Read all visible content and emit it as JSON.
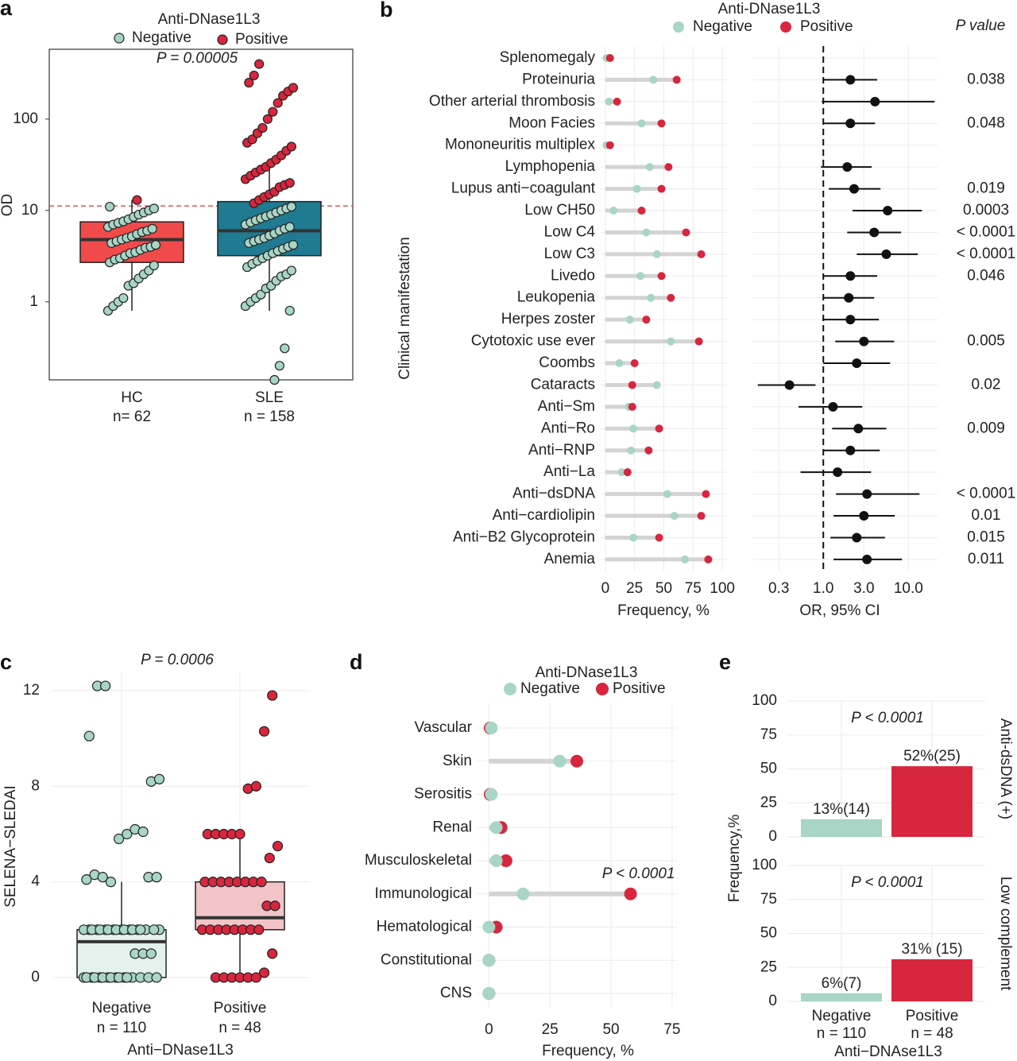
{
  "chart_data": [
    {
      "type": "box-jitter",
      "panel": "a",
      "ylog": true,
      "ylim": [
        0.14,
        580
      ],
      "yticks": [
        1,
        10,
        100
      ],
      "ylabel": "OD",
      "legend_title": "Anti-DNase1L3",
      "annotation": "P = 0.00005",
      "threshold": 11.2,
      "grid": false,
      "series": [
        {
          "name": "Negative",
          "color": "#a8d5c5"
        },
        {
          "name": "Positive",
          "color": "#d7263d"
        }
      ],
      "groups": [
        {
          "category": "HC",
          "n_label": "n= 62",
          "box": {
            "whisker_low": 0.8,
            "q1": 2.7,
            "median": 4.8,
            "q3": 7.5,
            "whisker_high": 13,
            "color": "#f04a4a"
          },
          "points": [
            [
              0.8,
              0.9,
              1.0,
              1.1,
              1.5,
              1.6,
              1.8,
              2.0,
              2.2,
              2.5,
              2.7,
              2.9,
              3.0,
              3.2,
              3.4,
              3.5,
              3.7,
              3.9,
              4.0,
              4.2,
              4.4,
              4.6,
              4.8,
              5.0,
              5.2,
              5.5,
              5.8,
              6.0,
              6.3,
              6.6,
              7.0,
              7.3,
              7.6,
              8.0,
              8.5,
              9.0,
              9.5,
              10.0,
              10.5,
              11.0
            ],
            [
              13
            ]
          ]
        },
        {
          "category": "SLE",
          "n_label": "n = 158",
          "box": {
            "whisker_low": 0.8,
            "q1": 3.2,
            "median": 6,
            "q3": 12.5,
            "whisker_high": 30,
            "color": "#1f7a92"
          },
          "points": [
            [
              0.14,
              0.2,
              0.31,
              0.8,
              0.9,
              1.0,
              1.1,
              1.2,
              1.4,
              1.5,
              1.7,
              1.9,
              2.0,
              2.2,
              2.4,
              2.6,
              2.8,
              3.0,
              3.2,
              3.4,
              3.6,
              3.8,
              4.0,
              4.2,
              4.4,
              4.6,
              4.8,
              5.0,
              5.3,
              5.6,
              6.0,
              6.3,
              6.6,
              7.0,
              7.4,
              7.8,
              8.2,
              8.6,
              9.0,
              9.5,
              10,
              10.5,
              11
            ],
            [
              12,
              13,
              14,
              15,
              16,
              18,
              19,
              20,
              22,
              24,
              26,
              28,
              30,
              33,
              36,
              40,
              45,
              50,
              55,
              60,
              70,
              80,
              100,
              120,
              150,
              180,
              200,
              220,
              250,
              300,
              400
            ]
          ]
        }
      ]
    },
    {
      "type": "lollipop-forest",
      "panel": "b",
      "legend_title": "Anti-DNase1L3",
      "ylabel": "Clinical manifestation",
      "xlabel": "Frequency, %",
      "xlim": [
        -4,
        104
      ],
      "xticks": [
        0,
        25,
        50,
        75,
        100
      ],
      "or_xlabel": "OR, 95% CI",
      "or_xlog": true,
      "or_xlim": [
        0.15,
        22
      ],
      "or_xticks": [
        0.3,
        {
          "value": 1,
          "label": "1.0"
        },
        {
          "value": 3,
          "label": "3.0"
        },
        {
          "value": 10,
          "label": "10.0"
        }
      ],
      "reference_line": 1,
      "p_header": "P value",
      "categories": [
        "Splenomegaly",
        "Proteinuria",
        "Other arterial thrombosis",
        "Moon Facies",
        "Mononeuritis multiplex",
        "Lymphopenia",
        "Lupus anti−coagulant",
        "Low CH50",
        "Low C4",
        "Low C3",
        "Livedo",
        "Leukopenia",
        "Herpes zoster",
        "Cytotoxic use ever",
        "Coombs",
        "Cataracts",
        "Anti−Sm",
        "Anti−Ro",
        "Anti−RNP",
        "Anti−La",
        "Anti−dsDNA",
        "Anti−cardiolipin",
        "Anti−B2 Glycoprotein",
        "Anemia"
      ],
      "series": [
        {
          "name": "Negative",
          "color": "#a8d5c5",
          "values": [
            1,
            41,
            3,
            31,
            1,
            38,
            27,
            7,
            35,
            44,
            30,
            39,
            21,
            56,
            12,
            44,
            20,
            24,
            22,
            14,
            53,
            59,
            24,
            68
          ]
        },
        {
          "name": "Positive",
          "color": "#d7263d",
          "values": [
            4,
            61,
            10,
            48,
            4,
            54,
            48,
            31,
            69,
            82,
            48,
            56,
            35,
            80,
            25,
            23,
            23,
            46,
            37,
            19,
            86,
            82,
            46,
            88
          ]
        }
      ],
      "or": {
        "estimate": [
          null,
          2.08,
          4.05,
          2.08,
          null,
          1.91,
          2.3,
          5.7,
          3.96,
          5.5,
          2.08,
          1.99,
          2.08,
          3.0,
          2.47,
          0.4,
          1.3,
          2.58,
          2.08,
          1.47,
          3.26,
          3.0,
          2.47,
          3.26
        ],
        "lower": [
          null,
          1.0,
          0.96,
          1.02,
          null,
          0.94,
          1.16,
          2.2,
          1.91,
          2.47,
          1.0,
          1.0,
          0.98,
          1.38,
          1.0,
          0.17,
          0.51,
          1.27,
          1.0,
          0.54,
          1.41,
          1.32,
          1.21,
          1.32
        ],
        "upper": [
          null,
          4.3,
          20.3,
          4.05,
          null,
          3.7,
          4.7,
          14.4,
          8.2,
          12.9,
          4.3,
          3.96,
          4.5,
          6.8,
          6.1,
          0.81,
          2.87,
          5.5,
          4.6,
          3.64,
          13.5,
          6.9,
          5.3,
          8.4
        ]
      },
      "p_values": [
        null,
        "0.038",
        null,
        "0.048",
        null,
        null,
        "0.019",
        "0.0003",
        "< 0.0001",
        "< 0.0001",
        "0.046",
        null,
        null,
        "0.005",
        null,
        "0.02",
        null,
        "0.009",
        null,
        null,
        "< 0.0001",
        "0.01",
        "0.015",
        "0.011"
      ]
    },
    {
      "type": "box-jitter",
      "panel": "c",
      "ylog": false,
      "ylim": [
        -0.5,
        12.8
      ],
      "yticks": [
        0,
        4,
        8,
        12
      ],
      "ylabel": "SELENA−SLEDAI",
      "xlabel": "Anti−DNase1L3",
      "annotation": "P = 0.0006",
      "grid": true,
      "series": [
        {
          "name": "Negative",
          "color": "#a8d5c5"
        },
        {
          "name": "Positive",
          "color": "#d7263d"
        }
      ],
      "groups": [
        {
          "category": "Negative",
          "n_label": "n = 110",
          "box": {
            "whisker_low": 0,
            "q1": 0,
            "median": 1.5,
            "q3": 2,
            "whisker_high": 4,
            "color": "#e3f2ed"
          },
          "points": [
            [
              0,
              0,
              0,
              0,
              0,
              0,
              0,
              0,
              0,
              0,
              0,
              0,
              0,
              0,
              0,
              0,
              1,
              1,
              1,
              2,
              2,
              2,
              2,
              2,
              2,
              2,
              2,
              2,
              2,
              2,
              2,
              2,
              2,
              2,
              2,
              2,
              2,
              4.2,
              4.2,
              4.1,
              4.3,
              4.2,
              4.0,
              5.8,
              6.0,
              6.2,
              6.1,
              8.2,
              8.3,
              10.1,
              12.2,
              12.2
            ],
            []
          ]
        },
        {
          "category": "Positive",
          "n_label": "n = 48",
          "box": {
            "whisker_low": 0,
            "q1": 2,
            "median": 2.5,
            "q3": 4,
            "whisker_high": 6,
            "color": "#f2c4c8"
          },
          "points": [
            [],
            [
              0,
              0,
              0,
              0,
              0,
              0,
              0.2,
              1,
              2,
              2,
              2,
              2,
              2,
              2,
              2,
              2,
              3,
              3,
              4,
              4,
              4,
              4,
              4,
              4,
              4,
              4,
              5,
              5.5,
              6,
              6,
              6,
              6,
              6,
              7.9,
              8,
              10.3,
              11.8
            ]
          ]
        }
      ]
    },
    {
      "type": "lollipop",
      "panel": "d",
      "legend_title": "Anti-DNase1L3",
      "xlabel": "Frequency, %",
      "xlim": [
        -5,
        77
      ],
      "xticks": [
        0,
        25,
        50,
        75
      ],
      "annotation": "P < 0.0001",
      "categories": [
        "Vascular",
        "Skin",
        "Serositis",
        "Renal",
        "Musculoskeletal",
        "Immunological",
        "Hematological",
        "Constitutional",
        "CNS"
      ],
      "series": [
        {
          "name": "Negative",
          "color": "#a8d5c5",
          "values": [
            1,
            29,
            1,
            3,
            3,
            14,
            0,
            0,
            0
          ]
        },
        {
          "name": "Positive",
          "color": "#d7263d",
          "values": [
            0.5,
            36,
            0.5,
            5,
            7,
            58,
            3,
            0,
            0
          ]
        }
      ]
    },
    {
      "type": "bar-facet",
      "panel": "e",
      "ylim": [
        0,
        100
      ],
      "yticks": [
        0,
        25,
        50,
        75,
        100
      ],
      "ylabel": "Frequency,%",
      "xlabel": "Anti−DNAse1L3",
      "categories": [
        "Negative",
        "Positive"
      ],
      "n_labels": [
        "n = 110",
        "n = 48"
      ],
      "colors": [
        "#a8d5c5",
        "#d7263d"
      ],
      "facets": [
        {
          "strip": "Anti-dsDNA (+)",
          "annotation": "P < 0.0001",
          "values": [
            13,
            52
          ],
          "value_labels": [
            "13%(14)",
            "52%(25)"
          ]
        },
        {
          "strip": "Low complement",
          "annotation": "P < 0.0001",
          "values": [
            6,
            31
          ],
          "value_labels": [
            "6%(7)",
            "31% (15)"
          ]
        }
      ]
    }
  ]
}
